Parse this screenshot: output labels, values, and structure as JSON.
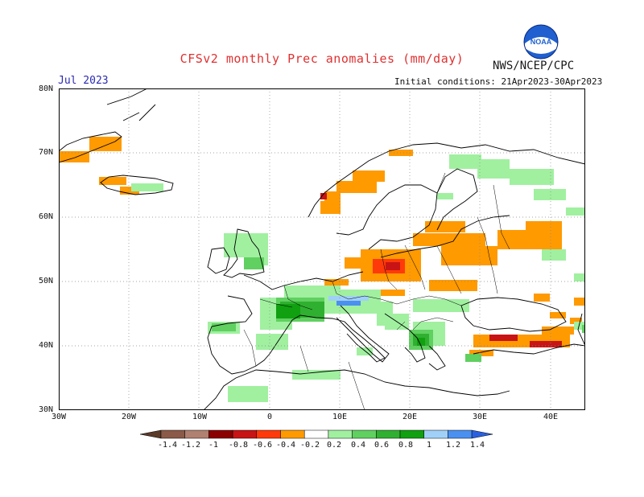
{
  "header": {
    "title": "CFSv2 monthly Prec anomalies (mm/day)",
    "agency": "NWS/NCEP/CPC",
    "month": "Jul 2023",
    "initial_conditions": "Initial conditions: 21Apr2023-30Apr2023"
  },
  "map": {
    "lat_labels": [
      "80N",
      "70N",
      "60N",
      "50N",
      "40N",
      "30N"
    ],
    "lon_labels": [
      "30W",
      "20W",
      "10W",
      "0",
      "10E",
      "20E",
      "30E",
      "40E"
    ],
    "lon_range": [
      -30,
      45
    ],
    "lat_range": [
      30,
      80
    ],
    "gridlines": true
  },
  "colorbar": {
    "labels": [
      "-1.4",
      "-1.2",
      "-1",
      "-0.8",
      "-0.6",
      "-0.4",
      "-0.2",
      "0.2",
      "0.4",
      "0.6",
      "0.8",
      "1",
      "1.2",
      "1.4"
    ],
    "colors": [
      "#5a3a28",
      "#8b5a48",
      "#b08070",
      "#8b0000",
      "#c81414",
      "#ff3a0a",
      "#ff9a00",
      "#ffffff",
      "#a0f0a0",
      "#60d060",
      "#30b030",
      "#10a010",
      "#a0d0f8",
      "#4a90f0",
      "#2a60e0"
    ]
  }
}
